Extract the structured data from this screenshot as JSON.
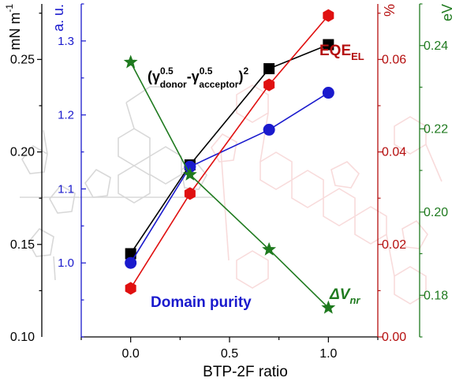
{
  "chart_data": {
    "type": "line",
    "xlabel": "BTP-2F ratio",
    "x": [
      0.0,
      0.3,
      0.7,
      1.0
    ],
    "x_ticks": [
      "0.0",
      "0.5",
      "1.0"
    ],
    "xlim": [
      -0.25,
      1.25
    ],
    "axes": [
      {
        "id": "mN",
        "unit_label": "mN m⁻¹",
        "ylim": [
          0.1,
          0.28
        ],
        "ticks": [
          "0.10",
          "0.15",
          "0.20",
          "0.25"
        ],
        "color": "#000000"
      },
      {
        "id": "au",
        "unit_label": "a. u.",
        "ylim": [
          0.9,
          1.35
        ],
        "ticks": [
          "1.0",
          "1.1",
          "1.2",
          "1.3"
        ],
        "color": "#1a1acd"
      },
      {
        "id": "pct",
        "unit_label": "%",
        "ylim": [
          0.0,
          0.072
        ],
        "ticks": [
          "0.00",
          "0.02",
          "0.04",
          "0.06"
        ],
        "color": "#b50f0f"
      },
      {
        "id": "eV",
        "unit_label": "eV",
        "ylim": [
          0.17,
          0.25
        ],
        "ticks": [
          "0.18",
          "0.20",
          "0.22",
          "0.24"
        ],
        "color": "#1f7a1f"
      }
    ],
    "series": [
      {
        "name": "(γdonor0.5-γacceptor0.5)2",
        "axis": "mN",
        "color": "#000000",
        "marker": "square",
        "values": [
          0.145,
          0.193,
          0.245,
          0.258
        ]
      },
      {
        "name": "Domain purity",
        "axis": "au",
        "color": "#1a1acd",
        "marker": "circle",
        "values": [
          1.0,
          1.13,
          1.18,
          1.23
        ]
      },
      {
        "name": "EQE_EL",
        "axis": "pct",
        "color": "#e01010",
        "marker": "hexagon",
        "values": [
          0.0105,
          0.031,
          0.0545,
          0.0695
        ]
      },
      {
        "name": "ΔV_nr",
        "axis": "eV",
        "color": "#1f7a1f",
        "marker": "star",
        "values": [
          0.236,
          0.209,
          0.191,
          0.177
        ]
      }
    ],
    "annotations": {
      "gamma": {
        "pre": "(γ",
        "sup1": "0.5",
        "sub1": "donor",
        "mid": "-γ",
        "sup2": "0.5",
        "sub2": "acceptor",
        "post": ")",
        "sup3": "2"
      },
      "eqe": {
        "main": "EQE",
        "sub": "EL"
      },
      "purity": "Domain purity",
      "dvnr": {
        "delta": "Δ",
        "main": "V",
        "sub": "nr"
      }
    },
    "grid": false,
    "legend": "none"
  }
}
